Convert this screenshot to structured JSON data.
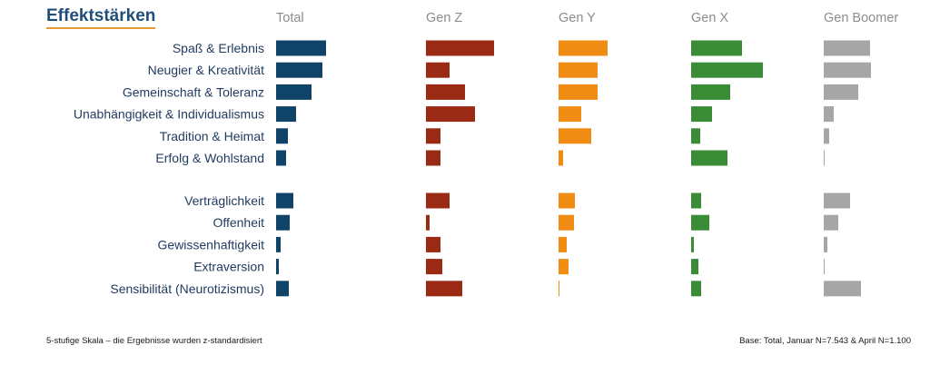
{
  "title": "Effektstärken",
  "footnote_left": "5-stufige Skala – die Ergebnisse wurden z-standardisiert",
  "footnote_right": "Base: Total, Januar N=7.543 & April N=1.100",
  "colors": {
    "total": "#0f4468",
    "gen_z": "#9b2a14",
    "gen_y": "#f08c14",
    "gen_x": "#3a8c36",
    "gen_boomer": "#a6a6a6",
    "label": "#1f3a5f",
    "header": "#8c8c8c"
  },
  "chart_data": {
    "type": "bar",
    "orientation": "horizontal",
    "layout": "small-multiples",
    "title": "Effektstärken",
    "categories": [
      "Spaß & Erlebnis",
      "Neugier & Kreativität",
      "Gemeinschaft & Toleranz",
      "Unabhängigkeit & Individualismus",
      "Tradition & Heimat",
      "Erfolg & Wohlstand",
      "Verträglichkeit",
      "Offenheit",
      "Gewissenhaftigkeit",
      "Extraversion",
      "Sensibilität (Neurotizismus)"
    ],
    "groups": [
      {
        "start": 0,
        "end": 5
      },
      {
        "start": 6,
        "end": 10
      }
    ],
    "value_scale": "relative",
    "xlim": [
      0,
      100
    ],
    "series": [
      {
        "name": "Total",
        "values": [
          55,
          51,
          39,
          22,
          13,
          11,
          19,
          15,
          5,
          3,
          14
        ]
      },
      {
        "name": "Gen Z",
        "values": [
          75,
          26,
          43,
          54,
          16,
          16,
          26,
          4,
          16,
          18,
          40
        ]
      },
      {
        "name": "Gen Y",
        "values": [
          54,
          43,
          43,
          25,
          36,
          5,
          18,
          17,
          9,
          11,
          1
        ]
      },
      {
        "name": "Gen X",
        "values": [
          56,
          79,
          43,
          23,
          10,
          40,
          11,
          20,
          3,
          8,
          11
        ]
      },
      {
        "name": "Gen Boomer",
        "values": [
          51,
          52,
          38,
          11,
          6,
          1,
          29,
          16,
          4,
          1,
          41
        ]
      }
    ]
  }
}
